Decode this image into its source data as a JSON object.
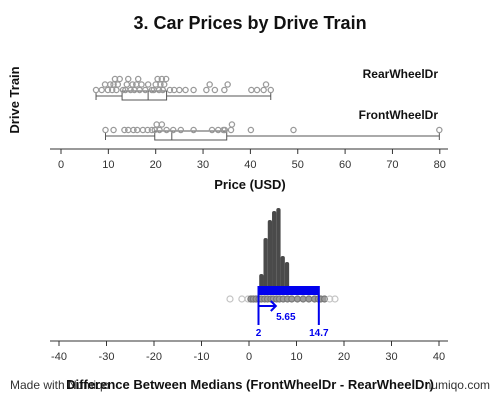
{
  "chart_data": [
    {
      "type": "scatter",
      "subtype": "box-and-dot-strip",
      "title": "3. Car Prices by Drive Train",
      "xlabel": "Price (USD)",
      "ylabel": "Drive Train",
      "xlim": [
        -2,
        82
      ],
      "x_ticks": [
        0,
        10,
        20,
        30,
        40,
        50,
        60,
        70,
        80
      ],
      "series": [
        {
          "name": "RearWheelDr",
          "values": [
            7.4,
            8.6,
            9.3,
            9.9,
            10.4,
            10.8,
            11.1,
            11.4,
            11.7,
            12.0,
            12.4,
            13.1,
            13.6,
            13.9,
            14.2,
            14.7,
            15.1,
            15.5,
            15.9,
            16.3,
            16.6,
            17.0,
            17.8,
            18.4,
            19.2,
            19.6,
            20.0,
            20.4,
            20.7,
            21.0,
            21.3,
            21.5,
            21.8,
            22.2,
            23.0,
            23.9,
            25.0,
            26.3,
            28.0,
            30.7,
            31.4,
            32.5,
            34.5,
            35.2,
            40.2,
            41.4,
            42.8,
            43.3,
            44.3
          ],
          "box": {
            "min": 7.4,
            "q1": 12.9,
            "median": 18.4,
            "q3": 22.3,
            "max": 44.3
          }
        },
        {
          "name": "FrontWheelDr",
          "values": [
            9.4,
            11.1,
            13.4,
            14.2,
            15.3,
            16.1,
            17.3,
            18.3,
            19.2,
            19.8,
            20.2,
            20.8,
            21.3,
            22.3,
            23.7,
            25.3,
            28.0,
            31.9,
            33.2,
            34.3,
            34.6,
            35.9,
            36.1,
            40.1,
            49.1,
            79.9
          ],
          "box": {
            "min": 9.4,
            "q1": 19.8,
            "median": 23.4,
            "q3": 35.0,
            "max": 79.9
          }
        }
      ]
    },
    {
      "type": "histogram",
      "subtype": "bootstrap-distribution",
      "title": "",
      "xlabel": "Difference Between Medians (FrontWheelDr - RearWheelDr)",
      "ylabel": "",
      "xlim": [
        -42,
        42
      ],
      "x_ticks": [
        -40,
        -30,
        -20,
        -10,
        0,
        10,
        20,
        30,
        40
      ],
      "bin_width": 0.9,
      "bins": [
        {
          "x": 2.6,
          "count": 6
        },
        {
          "x": 3.5,
          "count": 18
        },
        {
          "x": 4.4,
          "count": 24
        },
        {
          "x": 5.3,
          "count": 27
        },
        {
          "x": 6.2,
          "count": 28
        },
        {
          "x": 7.1,
          "count": 12
        },
        {
          "x": 8.0,
          "count": 10
        }
      ],
      "dot_strip": [
        -4.0,
        -1.5,
        -0.2,
        0.4,
        0.9,
        1.5,
        2.1,
        2.6,
        3.3,
        3.9,
        4.6,
        5.1,
        5.8,
        6.4,
        7.2,
        8.1,
        9.0,
        10.2,
        11.4,
        12.6,
        13.8,
        14.6,
        15.1,
        15.9,
        17.0,
        18.1
      ],
      "observed_difference": 5.65,
      "ci": [
        2,
        14.7
      ],
      "ci_labels": {
        "lower": "2",
        "estimate": "5.65",
        "upper": "14.7"
      },
      "ci_color": "#0000ee"
    }
  ],
  "footer": {
    "left": "Made with Numiqo",
    "right": "numiqo.com"
  }
}
